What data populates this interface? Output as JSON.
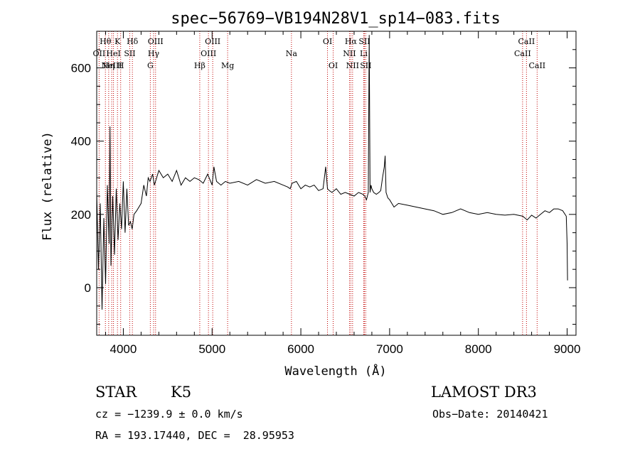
{
  "chart_data": {
    "type": "line",
    "title": "spec−56769−VB194N28V1_sp14−083.fits",
    "xlabel": "Wavelength (Å)",
    "ylabel": "Flux (relative)",
    "xlim": [
      3700,
      9100
    ],
    "ylim": [
      -130,
      700
    ],
    "xticks": [
      4000,
      5000,
      6000,
      7000,
      8000,
      9000
    ],
    "yticks": [
      0,
      200,
      400,
      600
    ],
    "grid": false,
    "series": [
      {
        "x": [
          3700,
          3720,
          3740,
          3760,
          3780,
          3800,
          3820,
          3840,
          3850,
          3860,
          3880,
          3900,
          3920,
          3940,
          3960,
          3980,
          4000,
          4020,
          4040,
          4060,
          4080,
          4100,
          4120,
          4150,
          4200,
          4230,
          4260,
          4280,
          4300,
          4330,
          4350,
          4400,
          4450,
          4500,
          4550,
          4600,
          4650,
          4700,
          4750,
          4800,
          4850,
          4900,
          4950,
          5000,
          5020,
          5050,
          5100,
          5150,
          5200,
          5300,
          5400,
          5500,
          5600,
          5700,
          5800,
          5850,
          5880,
          5900,
          5950,
          6000,
          6050,
          6100,
          6150,
          6200,
          6250,
          6280,
          6300,
          6320,
          6350,
          6400,
          6450,
          6500,
          6550,
          6600,
          6650,
          6700,
          6720,
          6740,
          6760,
          6770,
          6780,
          6790,
          6800,
          6820,
          6850,
          6880,
          6900,
          6920,
          6940,
          6950,
          6960,
          6980,
          7000,
          7050,
          7100,
          7200,
          7300,
          7400,
          7500,
          7600,
          7700,
          7800,
          7900,
          8000,
          8100,
          8200,
          8300,
          8400,
          8500,
          8550,
          8600,
          8650,
          8700,
          8750,
          8800,
          8850,
          8900,
          8950,
          8990,
          9000,
          9005
        ],
        "y": [
          260,
          50,
          230,
          -60,
          190,
          10,
          280,
          120,
          440,
          60,
          250,
          90,
          270,
          130,
          230,
          160,
          290,
          150,
          270,
          170,
          180,
          160,
          200,
          210,
          230,
          280,
          250,
          300,
          290,
          310,
          280,
          320,
          300,
          310,
          290,
          320,
          280,
          300,
          290,
          300,
          295,
          285,
          310,
          280,
          330,
          290,
          280,
          290,
          285,
          290,
          280,
          295,
          285,
          290,
          280,
          275,
          270,
          285,
          290,
          270,
          280,
          275,
          280,
          265,
          270,
          330,
          270,
          265,
          260,
          270,
          255,
          260,
          255,
          250,
          260,
          255,
          250,
          240,
          260,
          690,
          260,
          280,
          270,
          260,
          255,
          260,
          265,
          300,
          330,
          360,
          260,
          245,
          240,
          220,
          230,
          225,
          220,
          215,
          210,
          200,
          205,
          215,
          205,
          200,
          205,
          200,
          198,
          200,
          195,
          185,
          198,
          190,
          200,
          210,
          205,
          215,
          215,
          210,
          195,
          120,
          20
        ]
      }
    ],
    "emission_lines": [
      {
        "x": 3727,
        "label": "OII",
        "row": 1
      },
      {
        "x": 3798,
        "label": "Hθ",
        "row": 0
      },
      {
        "x": 3835,
        "label": "Hη",
        "row": 2
      },
      {
        "x": 3869,
        "label": "NeIII",
        "row": 2
      },
      {
        "x": 3889,
        "label": "HeI",
        "row": 1
      },
      {
        "x": 3934,
        "label": "K",
        "row": 0
      },
      {
        "x": 3970,
        "label": "H",
        "row": 2
      },
      {
        "x": 4072,
        "label": "SII",
        "row": 1
      },
      {
        "x": 4102,
        "label": "Hδ",
        "row": 0
      },
      {
        "x": 4304,
        "label": "G",
        "row": 2
      },
      {
        "x": 4341,
        "label": "Hγ",
        "row": 1
      },
      {
        "x": 4363,
        "label": "OIII",
        "row": 0
      },
      {
        "x": 4861,
        "label": "Hβ",
        "row": 2
      },
      {
        "x": 4959,
        "label": "OIII",
        "row": 1
      },
      {
        "x": 5007,
        "label": "OIII",
        "row": 0
      },
      {
        "x": 5175,
        "label": "Mg",
        "row": 2
      },
      {
        "x": 5894,
        "label": "Na",
        "row": 1
      },
      {
        "x": 6300,
        "label": "OI",
        "row": 0
      },
      {
        "x": 6364,
        "label": "OI",
        "row": 2
      },
      {
        "x": 6548,
        "label": "NII",
        "row": 1
      },
      {
        "x": 6563,
        "label": "Hα",
        "row": 0
      },
      {
        "x": 6583,
        "label": "NII",
        "row": 2
      },
      {
        "x": 6708,
        "label": "Li",
        "row": 1
      },
      {
        "x": 6716,
        "label": "SII",
        "row": 0
      },
      {
        "x": 6731,
        "label": "SII",
        "row": 2
      },
      {
        "x": 8498,
        "label": "CaII",
        "row": 1
      },
      {
        "x": 8542,
        "label": "CaII",
        "row": 0
      },
      {
        "x": 8662,
        "label": "CaII",
        "row": 2
      }
    ]
  },
  "info": {
    "class": "STAR",
    "subclass": "K5",
    "survey": "LAMOST DR3",
    "redshift": "cz = −1239.9 ± 0.0 km/s",
    "obs_date": "Obs−Date: 20140421",
    "coords": "RA = 193.17440, DEC =  28.95953"
  }
}
